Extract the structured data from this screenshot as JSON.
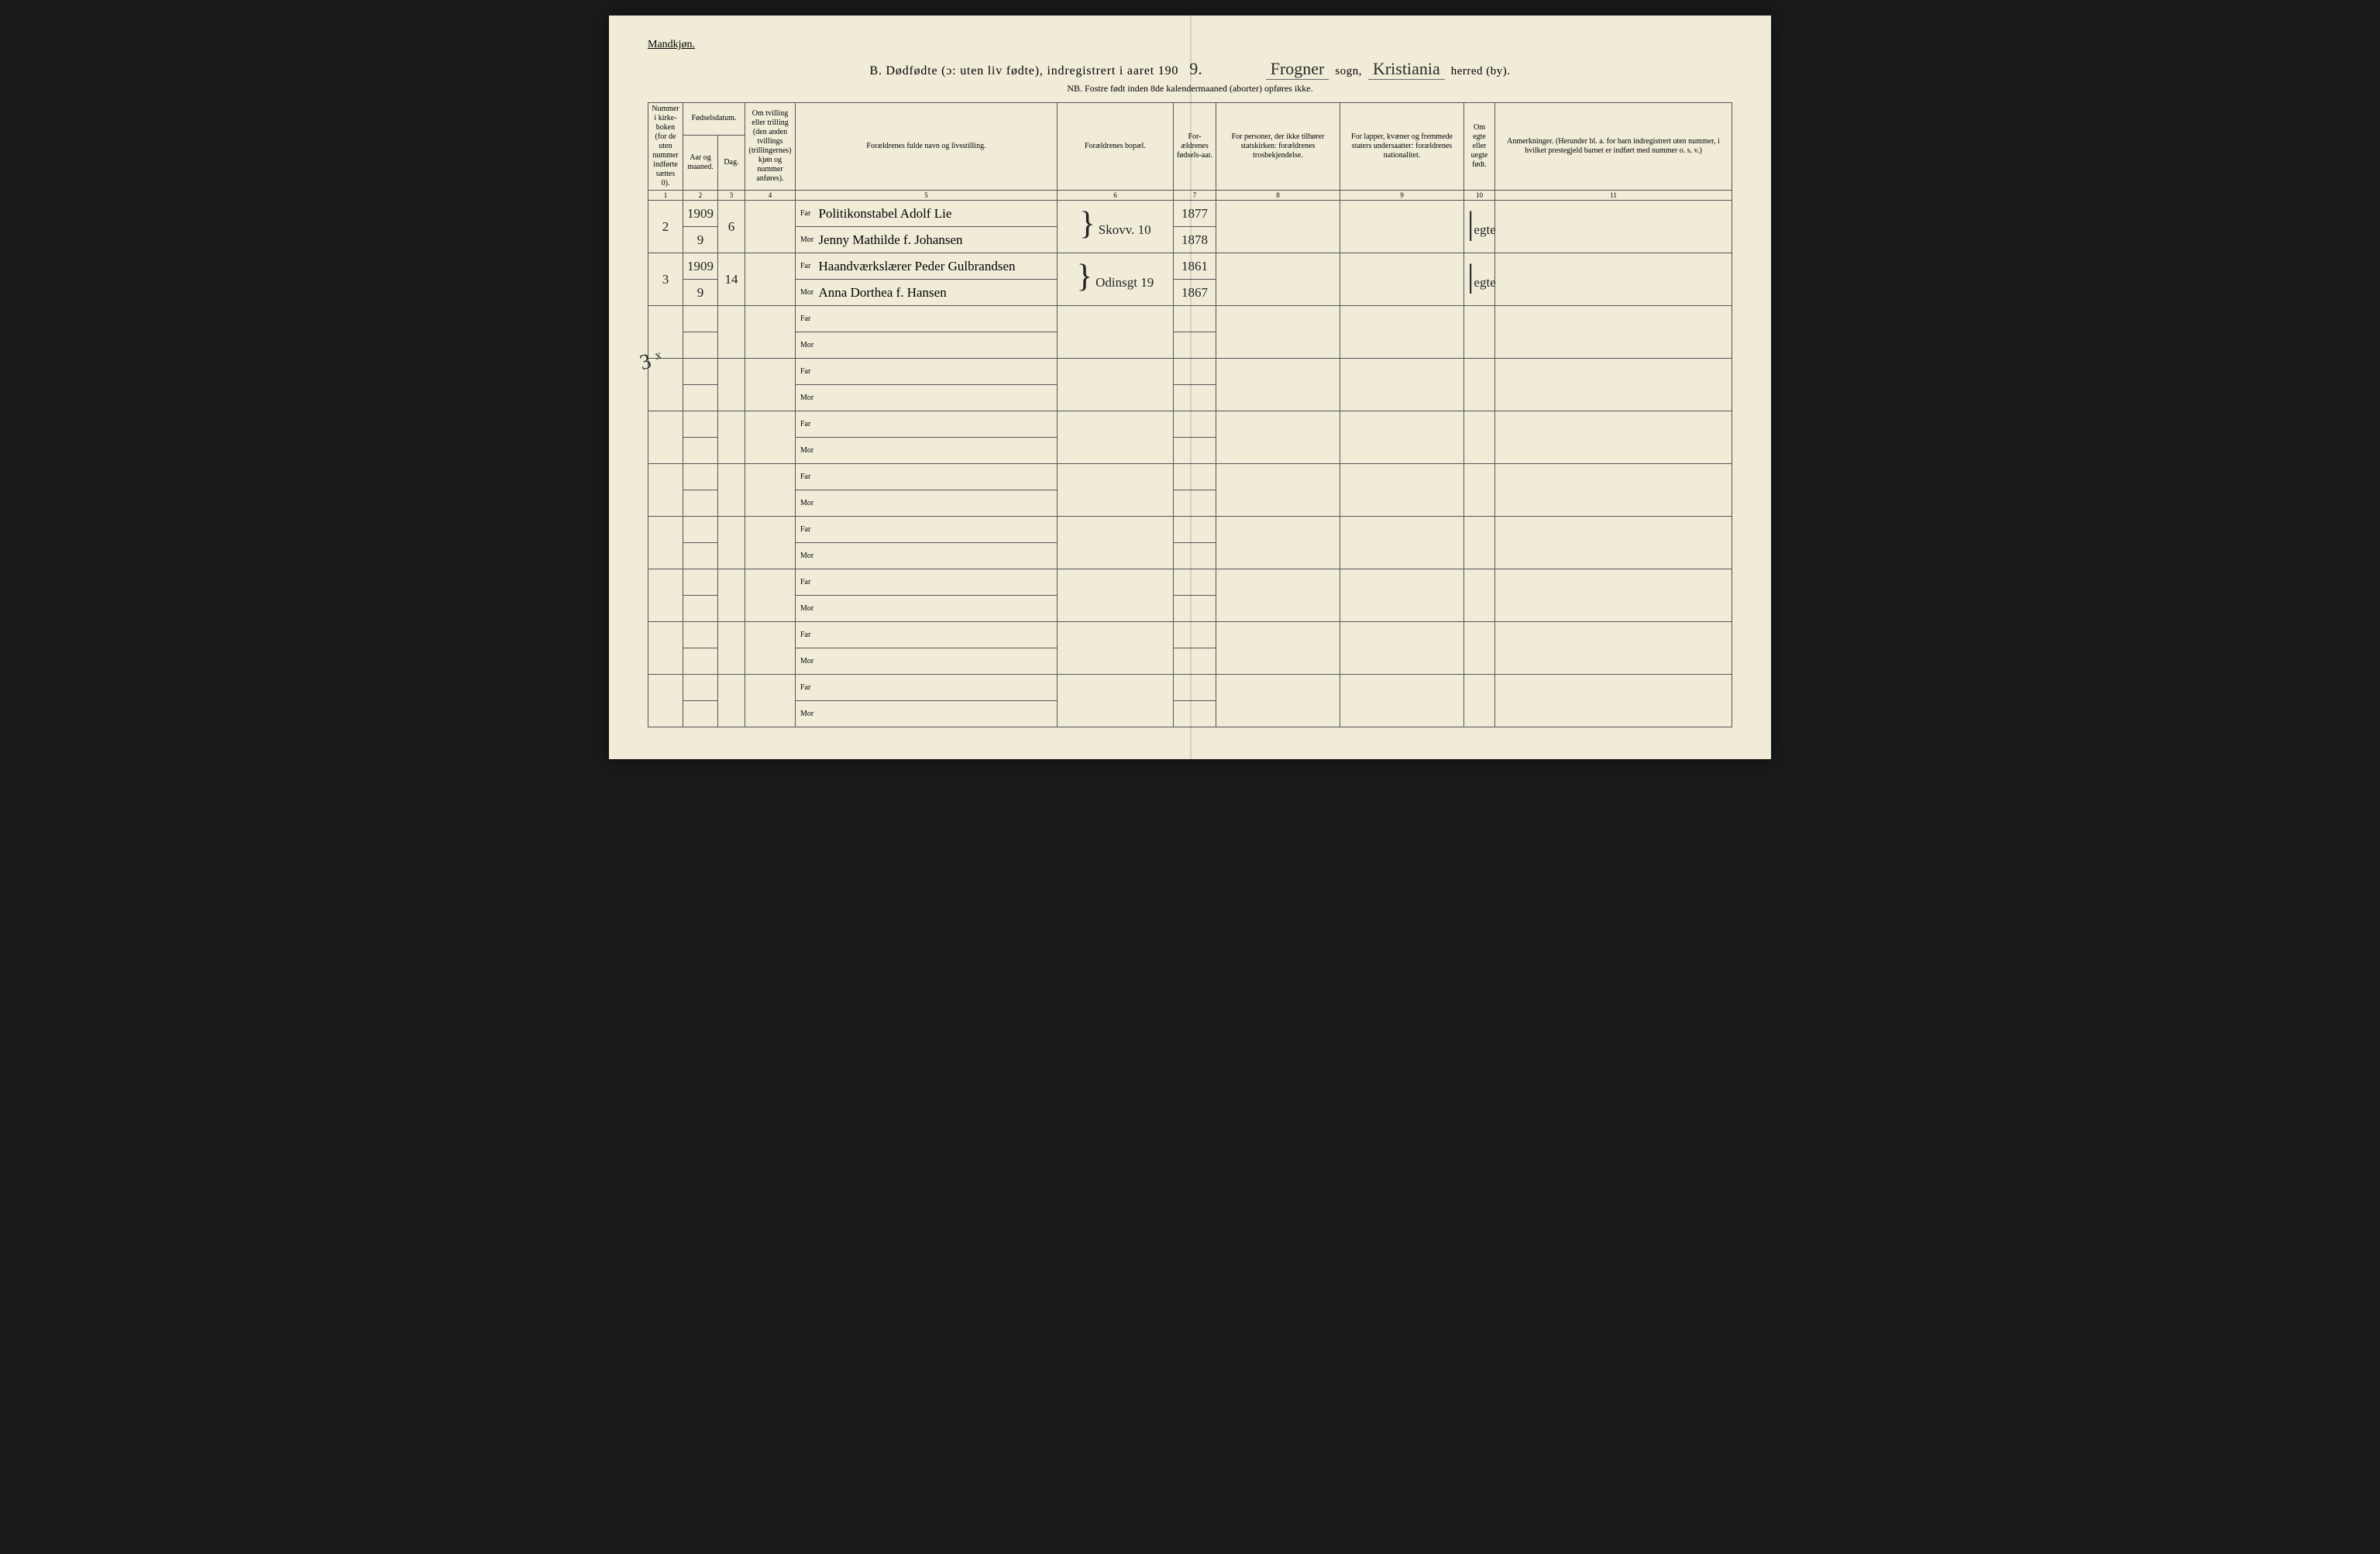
{
  "meta": {
    "background": "#f0ecd8",
    "ink": "#222222",
    "rule": "#555555"
  },
  "header": {
    "corner": "Mandkjøn.",
    "prefix": "B.  Dødfødte (ɔ: uten liv fødte), indregistrert i aaret 190",
    "year_digit": "9.",
    "sogn_value": "Frogner",
    "sogn_label": "sogn,",
    "herred_value": "Kristiania",
    "herred_label": "herred (by).",
    "subtitle": "NB.  Fostre født inden 8de kalendermaaned (aborter) opføres ikke."
  },
  "columns": {
    "c1": "Nummer i kirke-boken (for de uten nummer indførte sættes 0).",
    "c2_group": "Fødselsdatum.",
    "c2a": "Aar og maaned.",
    "c2b": "Dag.",
    "c4": "Om tvilling eller trilling (den anden tvillings (trillingernes) kjøn og nummer anføres).",
    "c5": "Forældrenes fulde navn og livsstilling.",
    "c6": "Forældrenes bopæl.",
    "c7": "For-ældrenes fødsels-aar.",
    "c8": "For personer, der ikke tilhører statskirken: forældrenes trosbekjendelse.",
    "c9": "For lapper, kvæner og fremmede staters undersaatter: forældrenes nationalitet.",
    "c10": "Om egte eller uegte født.",
    "c11": "Anmerkninger. (Herunder bl. a. for barn indregistrert uten nummer, i hvilket prestegjeld barnet er indført med nummer o. s. v.)",
    "nums": [
      "1",
      "2",
      "3",
      "4",
      "5",
      "6",
      "7",
      "8",
      "9",
      "10",
      "11"
    ]
  },
  "labels": {
    "far": "Far",
    "mor": "Mor"
  },
  "rows": [
    {
      "num": "2",
      "year": "1909",
      "month": "9",
      "day": "6",
      "far": "Politikonstabel Adolf Lie",
      "mor": "Jenny Mathilde f. Johansen",
      "bopel": "Skovv. 10",
      "far_aar": "1877",
      "mor_aar": "1878",
      "egte": "egte"
    },
    {
      "num": "3",
      "year": "1909",
      "month": "9",
      "day": "14",
      "far": "Haandværkslærer Peder Gulbrandsen",
      "mor": "Anna Dorthea f. Hansen",
      "bopel": "Odinsgt 19",
      "far_aar": "1861",
      "mor_aar": "1867",
      "egte": "egte"
    }
  ],
  "strike": "3 ˣ",
  "empty_pairs": 8
}
